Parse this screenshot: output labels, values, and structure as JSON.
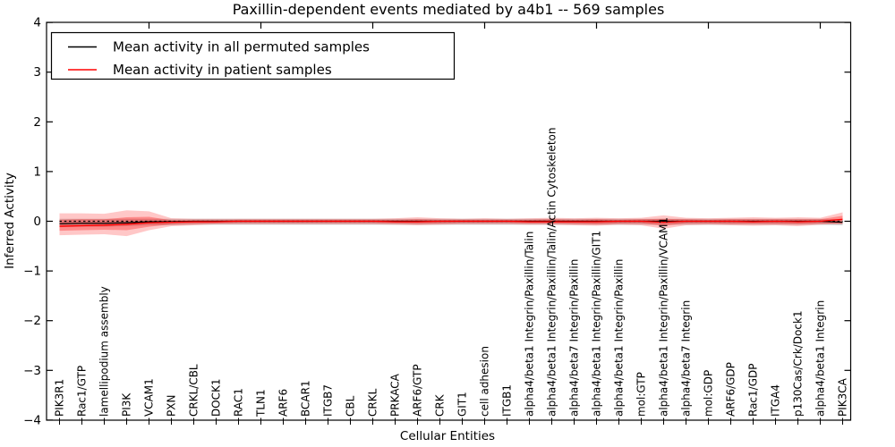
{
  "figure": {
    "title": "Paxillin-dependent events mediated by a4b1 -- 569 samples",
    "xlabel": "Cellular Entities",
    "ylabel": "Inferred Activity",
    "background_color": "#ffffff",
    "legend": {
      "entries": [
        {
          "label": "Mean activity in all permuted samples",
          "color": "#000000"
        },
        {
          "label": "Mean activity in patient samples",
          "color": "#ff0000"
        }
      ]
    }
  },
  "chart_data": {
    "type": "line",
    "title": "Paxillin-dependent events mediated by a4b1 -- 569 samples",
    "xlabel": "Cellular Entities",
    "ylabel": "Inferred Activity",
    "ylim": [
      -4,
      4
    ],
    "yticks": [
      -4,
      -3,
      -2,
      -1,
      0,
      1,
      2,
      3,
      4
    ],
    "grid": false,
    "legend_position": "upper left",
    "x_top_tick_indices": [
      4,
      9,
      14,
      19,
      24,
      29,
      34
    ],
    "categories": [
      "PIK3R1",
      "Rac1/GTP",
      "lamellipodium assembly",
      "PI3K",
      "VCAM1",
      "PXN",
      "CRKL/CBL",
      "DOCK1",
      "RAC1",
      "TLN1",
      "ARF6",
      "BCAR1",
      "ITGB7",
      "CBL",
      "CRKL",
      "PRKACA",
      "ARF6/GTP",
      "CRK",
      "GIT1",
      "cell adhesion",
      "ITGB1",
      "alpha4/beta1 Integrin/Paxillin/Talin",
      "alpha4/beta1 Integrin/Paxillin/Talin/Actin Cytoskeleton",
      "alpha4/beta7 Integrin/Paxillin",
      "alpha4/beta1 Integrin/Paxillin/GIT1",
      "alpha4/beta1 Integrin/Paxillin",
      "mol:GTP",
      "alpha4/beta1 Integrin/Paxillin/VCAM1",
      "alpha4/beta7 Integrin",
      "mol:GDP",
      "ARF6/GDP",
      "Rac1/GDP",
      "ITGA4",
      "p130Cas/Crk/Dock1",
      "alpha4/beta1 Integrin",
      "PIK3CA"
    ],
    "series": [
      {
        "name": "Mean activity in all permuted samples",
        "color": "#000000",
        "style": "solid",
        "values": [
          -0.05,
          -0.04,
          -0.04,
          -0.03,
          -0.01,
          -0.01,
          0,
          0,
          0,
          0,
          0,
          0,
          0,
          0,
          0,
          0,
          0,
          0,
          0,
          0,
          0,
          0,
          0,
          0,
          0,
          0,
          0,
          0,
          0,
          0,
          0,
          0,
          0,
          0,
          0,
          -0.02
        ]
      },
      {
        "name": "Mean activity in patient samples",
        "color": "#ff0000",
        "style": "solid",
        "values": [
          -0.1,
          -0.09,
          -0.08,
          -0.06,
          -0.03,
          -0.02,
          -0.01,
          -0.01,
          0,
          0,
          0,
          0,
          0,
          0,
          0,
          -0.01,
          -0.01,
          0,
          0,
          0,
          0,
          -0.01,
          -0.01,
          -0.01,
          -0.01,
          0,
          0,
          -0.02,
          0,
          0,
          0,
          -0.01,
          0,
          -0.01,
          0,
          0.04
        ]
      }
    ],
    "bands": [
      {
        "name": "permuted-samples-spread",
        "color": "#999999",
        "opacity": 0.45,
        "upper": [
          0.05,
          0.05,
          0.05,
          0.05,
          0.05,
          0.05,
          0.05,
          0.05,
          0.05,
          0.05,
          0.05,
          0.05,
          0.05,
          0.05,
          0.05,
          0.05,
          0.05,
          0.05,
          0.05,
          0.05,
          0.05,
          0.05,
          0.05,
          0.05,
          0.05,
          0.05,
          0.05,
          0.05,
          0.05,
          0.05,
          0.05,
          0.05,
          0.05,
          0.05,
          0.05,
          0.04
        ],
        "lower": [
          -0.12,
          -0.11,
          -0.11,
          -0.1,
          -0.08,
          -0.08,
          -0.07,
          -0.07,
          -0.07,
          -0.07,
          -0.07,
          -0.07,
          -0.07,
          -0.07,
          -0.07,
          -0.07,
          -0.07,
          -0.07,
          -0.07,
          -0.07,
          -0.07,
          -0.07,
          -0.07,
          -0.07,
          -0.07,
          -0.07,
          -0.07,
          -0.07,
          -0.07,
          -0.07,
          -0.07,
          -0.07,
          -0.07,
          -0.07,
          -0.07,
          -0.08
        ]
      },
      {
        "name": "patient-samples-spread-outer",
        "color": "#ff0000",
        "opacity": 0.22,
        "upper": [
          0.16,
          0.16,
          0.15,
          0.22,
          0.2,
          0.06,
          0.05,
          0.05,
          0.05,
          0.05,
          0.05,
          0.05,
          0.05,
          0.05,
          0.05,
          0.06,
          0.08,
          0.06,
          0.05,
          0.06,
          0.05,
          0.06,
          0.07,
          0.06,
          0.07,
          0.06,
          0.07,
          0.12,
          0.07,
          0.06,
          0.07,
          0.08,
          0.07,
          0.08,
          0.07,
          0.18
        ],
        "lower": [
          -0.28,
          -0.27,
          -0.26,
          -0.3,
          -0.18,
          -0.1,
          -0.08,
          -0.06,
          -0.06,
          -0.06,
          -0.06,
          -0.06,
          -0.06,
          -0.06,
          -0.06,
          -0.07,
          -0.08,
          -0.07,
          -0.06,
          -0.06,
          -0.06,
          -0.07,
          -0.07,
          -0.08,
          -0.09,
          -0.07,
          -0.08,
          -0.15,
          -0.08,
          -0.07,
          -0.08,
          -0.09,
          -0.08,
          -0.1,
          -0.07,
          -0.05
        ]
      },
      {
        "name": "patient-samples-spread-inner",
        "color": "#ff0000",
        "opacity": 0.3,
        "upper": [
          0.03,
          0.04,
          0.04,
          0.08,
          0.09,
          0.02,
          0.02,
          0.02,
          0.03,
          0.03,
          0.03,
          0.03,
          0.03,
          0.03,
          0.03,
          0.03,
          0.04,
          0.03,
          0.03,
          0.03,
          0.03,
          0.03,
          0.04,
          0.03,
          0.04,
          0.03,
          0.04,
          0.05,
          0.04,
          0.03,
          0.04,
          0.04,
          0.04,
          0.04,
          0.04,
          0.11
        ],
        "lower": [
          -0.19,
          -0.18,
          -0.17,
          -0.18,
          -0.11,
          -0.06,
          -0.05,
          -0.04,
          -0.03,
          -0.03,
          -0.03,
          -0.03,
          -0.03,
          -0.03,
          -0.03,
          -0.04,
          -0.05,
          -0.04,
          -0.03,
          -0.03,
          -0.03,
          -0.04,
          -0.04,
          -0.05,
          -0.06,
          -0.04,
          -0.04,
          -0.09,
          -0.04,
          -0.04,
          -0.05,
          -0.05,
          -0.05,
          -0.06,
          -0.04,
          -0.05
        ]
      }
    ],
    "reference_line": {
      "y": 0,
      "color": "#000000",
      "style": "dashed"
    }
  }
}
